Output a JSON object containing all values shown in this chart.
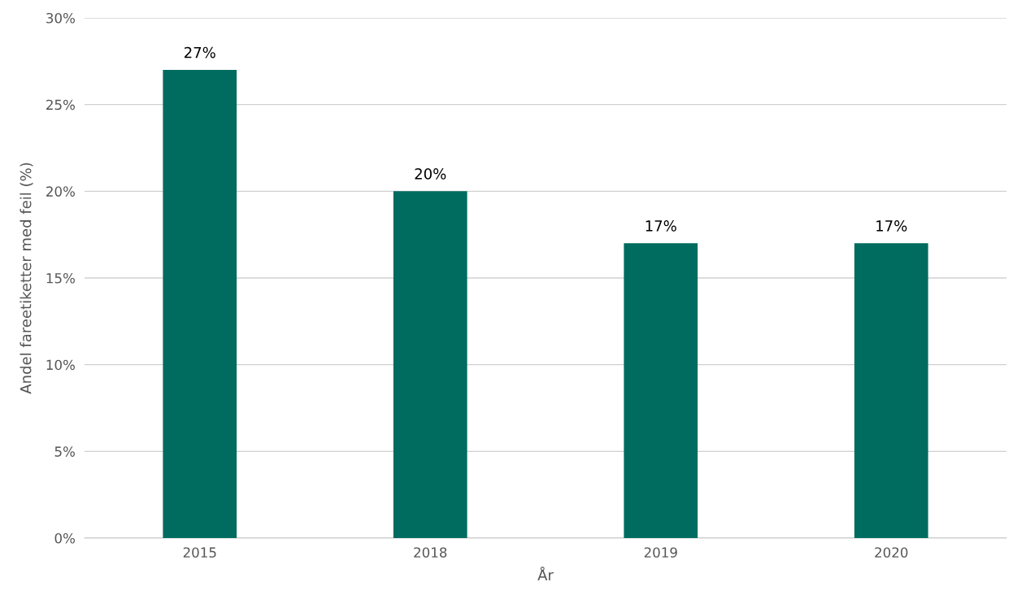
{
  "chart_data": {
    "type": "bar",
    "xlabel": "År",
    "ylabel": "Andel fareetiketter med feil (%)",
    "categories": [
      "2015",
      "2018",
      "2019",
      "2020"
    ],
    "series": [
      {
        "color": "#006b5f",
        "values": [
          27,
          20,
          17,
          17
        ],
        "value_labels": [
          "27%",
          "20%",
          "17%",
          "17%"
        ]
      }
    ],
    "ylim": [
      0,
      30
    ],
    "yticks": [
      {
        "value": 0,
        "label": "0%"
      },
      {
        "value": 5,
        "label": "5%"
      },
      {
        "value": 10,
        "label": "10%"
      },
      {
        "value": 15,
        "label": "15%"
      },
      {
        "value": 20,
        "label": "20%"
      },
      {
        "value": 25,
        "label": "25%"
      },
      {
        "value": 30,
        "label": "30%"
      }
    ],
    "grid": "y"
  }
}
